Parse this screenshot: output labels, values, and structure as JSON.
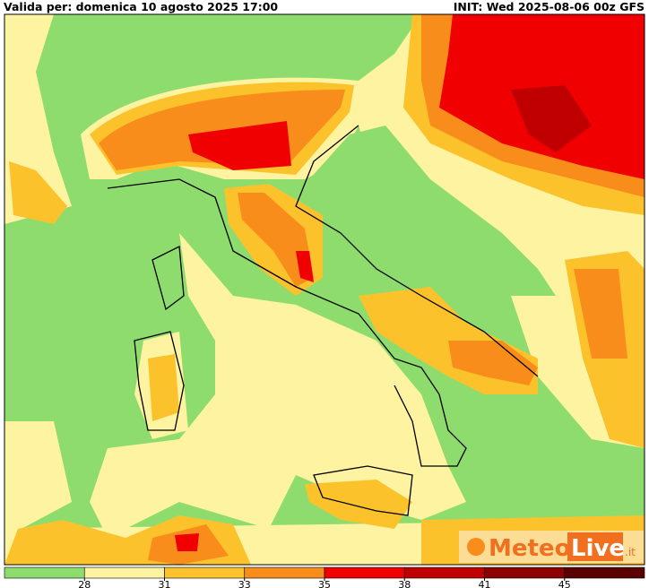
{
  "header": {
    "valid": "Valida per: domenica 10 agosto 2025 17:00",
    "init": "INIT: Wed 2025-08-06 00z GFS"
  },
  "legend": {
    "ticks": [
      28,
      31,
      33,
      35,
      38,
      41,
      45
    ],
    "colors": [
      "#8fdc6e",
      "#fdf3a0",
      "#fbc22c",
      "#f98d1c",
      "#f00000",
      "#c00000",
      "#8b0000",
      "#5a0000"
    ]
  },
  "logo": {
    "meteo": "Meteo",
    "live": "Live",
    "domain": ".it"
  }
}
